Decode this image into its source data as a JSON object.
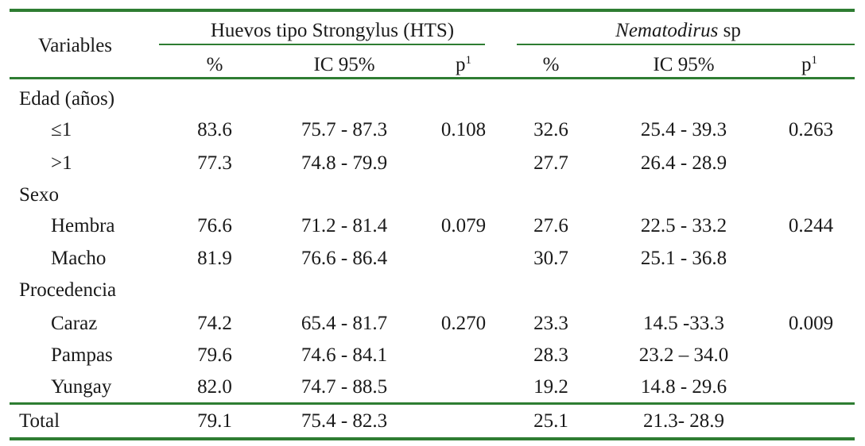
{
  "header": {
    "variables_label": "Variables",
    "group_hts": "Huevos tipo Strongylus (HTS)",
    "group_nema_italic": "Nematodirus",
    "group_nema_suffix": " sp",
    "pct": "%",
    "ic": "IC 95%",
    "p_base": "p",
    "p_sup": "1"
  },
  "rows": [
    {
      "label": "Edad (años)",
      "hts_pct": "",
      "hts_ic": "",
      "hts_p": "",
      "nem_pct": "",
      "nem_ic": "",
      "nem_p": ""
    },
    {
      "label": "≤1",
      "hts_pct": "83.6",
      "hts_ic": "75.7 - 87.3",
      "hts_p": "0.108",
      "nem_pct": "32.6",
      "nem_ic": "25.4 - 39.3",
      "nem_p": "0.263"
    },
    {
      "label": ">1",
      "hts_pct": "77.3",
      "hts_ic": "74.8 - 79.9",
      "hts_p": "",
      "nem_pct": "27.7",
      "nem_ic": "26.4 - 28.9",
      "nem_p": ""
    },
    {
      "label": "Sexo",
      "hts_pct": "",
      "hts_ic": "",
      "hts_p": "",
      "nem_pct": "",
      "nem_ic": "",
      "nem_p": ""
    },
    {
      "label": "Hembra",
      "hts_pct": "76.6",
      "hts_ic": "71.2 - 81.4",
      "hts_p": "0.079",
      "nem_pct": "27.6",
      "nem_ic": "22.5 - 33.2",
      "nem_p": "0.244"
    },
    {
      "label": "Macho",
      "hts_pct": "81.9",
      "hts_ic": "76.6 - 86.4",
      "hts_p": "",
      "nem_pct": "30.7",
      "nem_ic": "25.1 - 36.8",
      "nem_p": ""
    },
    {
      "label": "Procedencia",
      "hts_pct": "",
      "hts_ic": "",
      "hts_p": "",
      "nem_pct": "",
      "nem_ic": "",
      "nem_p": ""
    },
    {
      "label": "Caraz",
      "hts_pct": "74.2",
      "hts_ic": "65.4 - 81.7",
      "hts_p": "0.270",
      "nem_pct": "23.3",
      "nem_ic": "14.5 -33.3",
      "nem_p": "0.009"
    },
    {
      "label": "Pampas",
      "hts_pct": "79.6",
      "hts_ic": "74.6 - 84.1",
      "hts_p": "",
      "nem_pct": "28.3",
      "nem_ic": "23.2 – 34.0",
      "nem_p": ""
    },
    {
      "label": "Yungay",
      "hts_pct": "82.0",
      "hts_ic": "74.7 - 88.5",
      "hts_p": "",
      "nem_pct": "19.2",
      "nem_ic": "14.8 - 29.6",
      "nem_p": ""
    },
    {
      "label": "Total",
      "hts_pct": "79.1",
      "hts_ic": "75.4 - 82.3",
      "hts_p": "",
      "nem_pct": "25.1",
      "nem_ic": "21.3- 28.9",
      "nem_p": ""
    }
  ],
  "colors": {
    "rule": "#2e7d32",
    "text": "#1a1a1a"
  }
}
